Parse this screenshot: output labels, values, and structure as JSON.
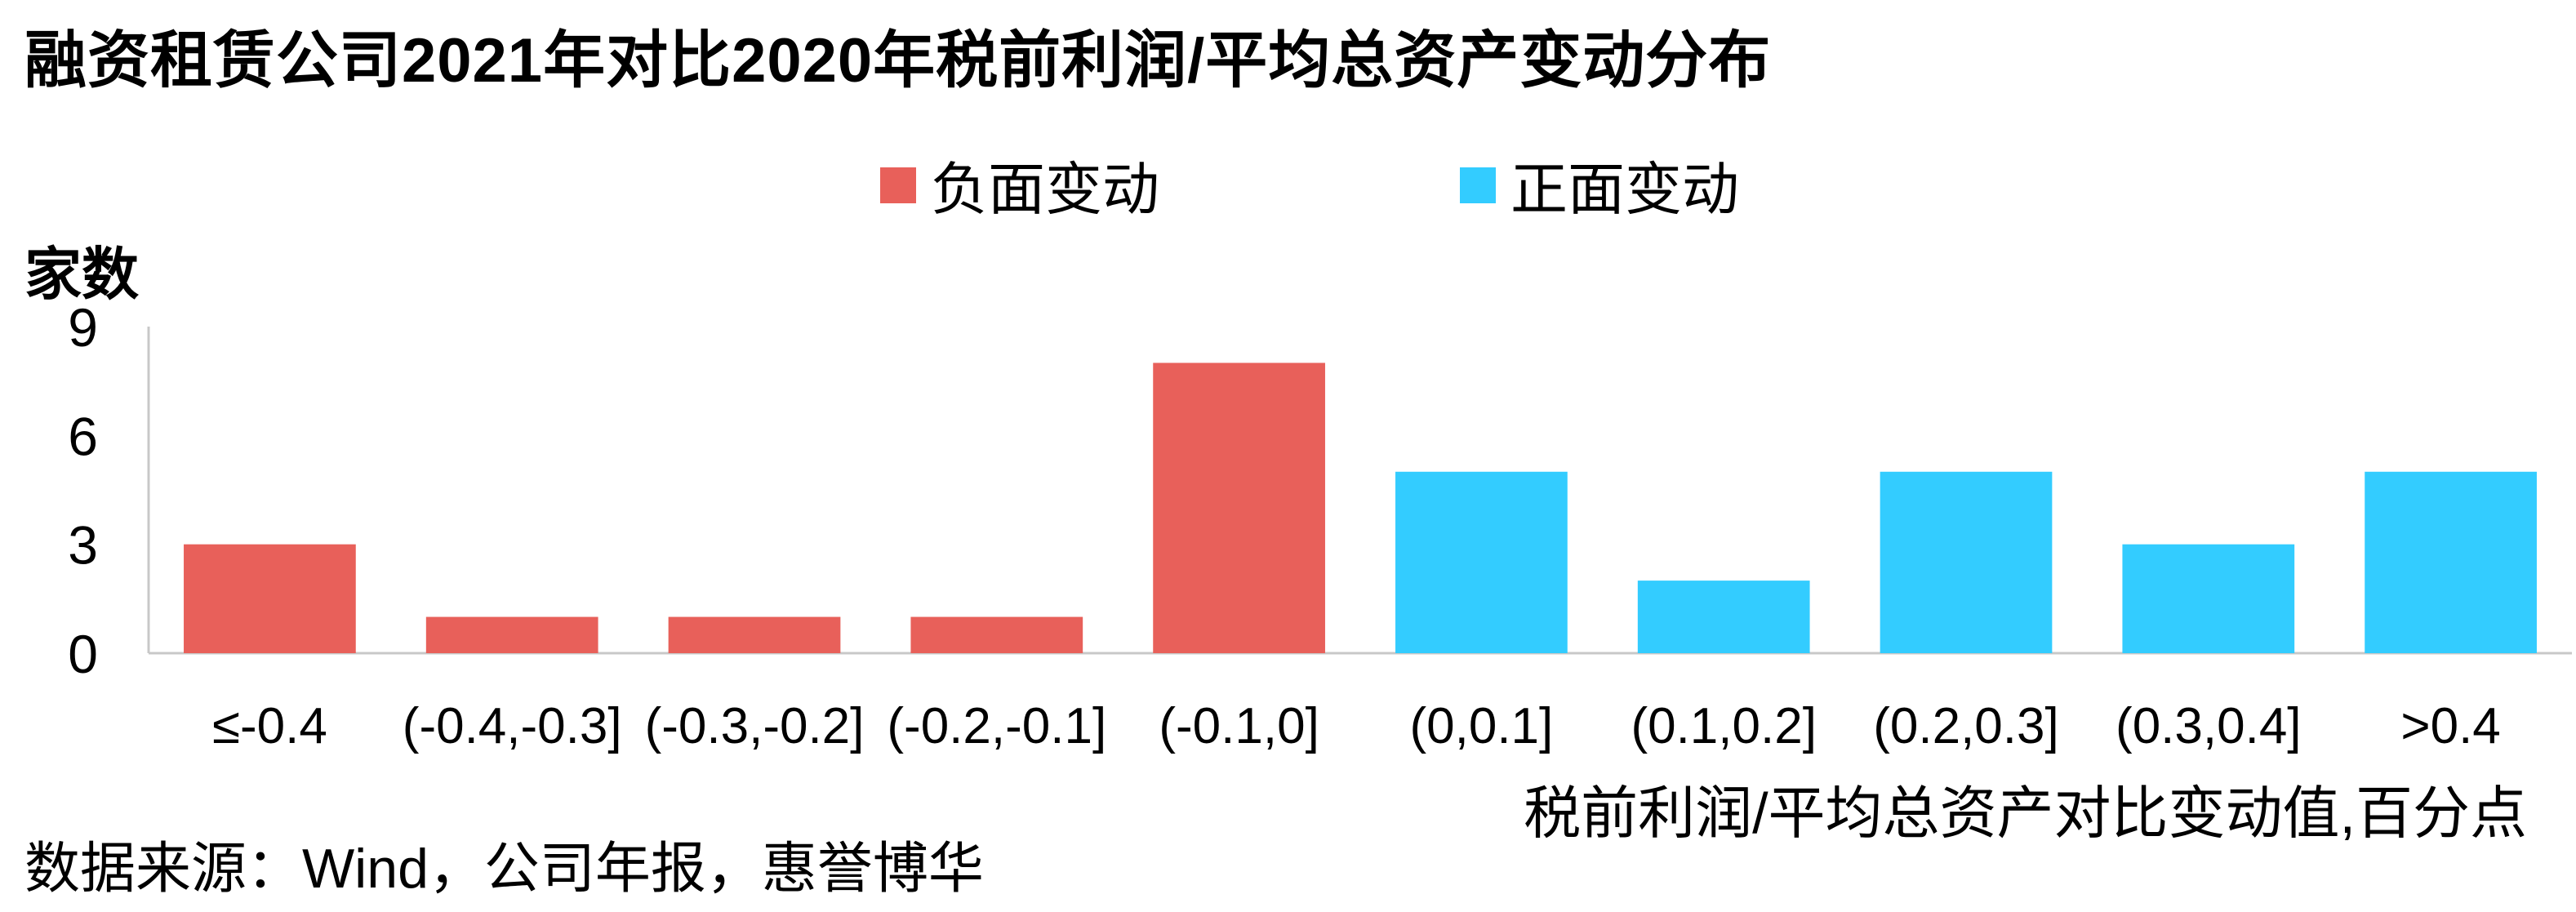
{
  "title": "融资租赁公司2021年对比2020年税前利润/平均总资产变动分布",
  "source": "数据来源：Wind，公司年报，惠誉博华",
  "colors": {
    "negative": "#e8605a",
    "positive": "#33ccff",
    "axis": "#c8c8c8"
  },
  "chart_data": {
    "type": "bar",
    "ylabel": "家数",
    "xlabel": "税前利润/平均总资产对比变动值,百分点",
    "ylim": [
      0,
      9
    ],
    "yticks": [
      "0",
      "3",
      "6",
      "9"
    ],
    "legend_position": "top",
    "grid": false,
    "categories": [
      "≤-0.4",
      "(-0.4,-0.3]",
      "(-0.3,-0.2]",
      "(-0.2,-0.1]",
      "(-0.1,0]",
      "(0,0.1]",
      "(0.1,0.2]",
      "(0.2,0.3]",
      "(0.3,0.4]",
      ">0.4"
    ],
    "series": [
      {
        "name": "负面变动",
        "values": [
          3,
          1,
          1,
          1,
          8,
          null,
          null,
          null,
          null,
          null
        ]
      },
      {
        "name": "正面变动",
        "values": [
          null,
          null,
          null,
          null,
          null,
          5,
          2,
          5,
          3,
          5
        ]
      }
    ]
  }
}
